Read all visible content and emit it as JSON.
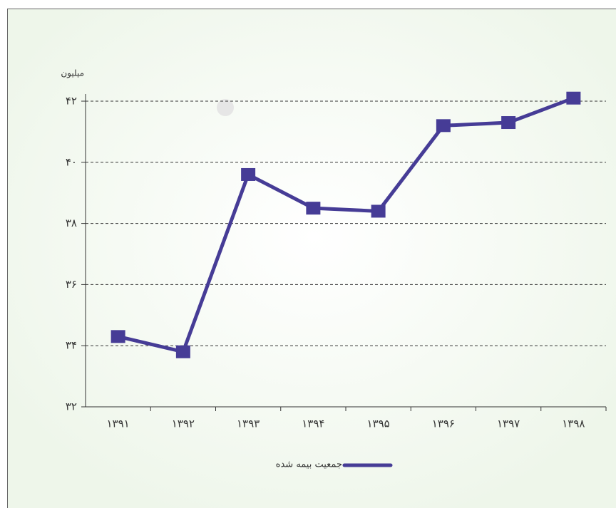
{
  "chart_data": {
    "type": "line",
    "y_axis_label": "میلیون",
    "categories": [
      "۱۳۹۱",
      "۱۳۹۲",
      "۱۳۹۳",
      "۱۳۹۴",
      "۱۳۹۵",
      "۱۳۹۶",
      "۱۳۹۷",
      "۱۳۹۸"
    ],
    "series": [
      {
        "name": "جمعیت بیمه شده",
        "color": "#463c96",
        "values": [
          34.3,
          33.8,
          39.6,
          38.5,
          38.4,
          41.2,
          41.3,
          42.1
        ]
      }
    ],
    "ylim": [
      32,
      42
    ],
    "yticks": [
      {
        "value": 32,
        "label": "۳۲"
      },
      {
        "value": 34,
        "label": "۳۴"
      },
      {
        "value": 36,
        "label": "۳۶"
      },
      {
        "value": 38,
        "label": "۳۸"
      },
      {
        "value": 40,
        "label": "۴۰"
      },
      {
        "value": 42,
        "label": "۴۲"
      }
    ],
    "grid": true,
    "legend": "bottom"
  }
}
